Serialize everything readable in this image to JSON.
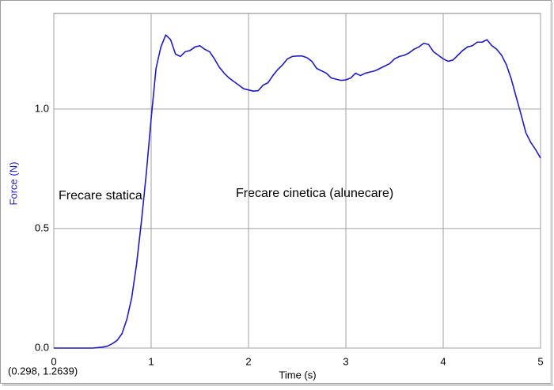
{
  "chart_data": {
    "type": "line",
    "x_label": "Time (s)",
    "y_label": "Force (N)",
    "annotations": [
      "Frecare statica",
      "Frecare cinetica (alunecare)"
    ],
    "cursor_readout": "(0.298, 1.2639)",
    "color": "#1c1cc4",
    "x": [
      0,
      0.1,
      0.2,
      0.3,
      0.4,
      0.45,
      0.5,
      0.55,
      0.6,
      0.65,
      0.7,
      0.75,
      0.8,
      0.85,
      0.9,
      0.95,
      1.0,
      1.05,
      1.1,
      1.15,
      1.2,
      1.25,
      1.3,
      1.35,
      1.4,
      1.45,
      1.5,
      1.55,
      1.6,
      1.65,
      1.7,
      1.75,
      1.8,
      1.85,
      1.9,
      1.95,
      2.0,
      2.05,
      2.1,
      2.15,
      2.2,
      2.25,
      2.3,
      2.35,
      2.4,
      2.45,
      2.5,
      2.55,
      2.6,
      2.65,
      2.7,
      2.75,
      2.8,
      2.85,
      2.9,
      2.95,
      3.0,
      3.05,
      3.1,
      3.15,
      3.2,
      3.25,
      3.3,
      3.35,
      3.4,
      3.45,
      3.5,
      3.55,
      3.6,
      3.65,
      3.7,
      3.75,
      3.8,
      3.85,
      3.9,
      3.95,
      4.0,
      4.05,
      4.1,
      4.15,
      4.2,
      4.25,
      4.3,
      4.35,
      4.4,
      4.45,
      4.5,
      4.55,
      4.6,
      4.65,
      4.7,
      4.75,
      4.8,
      4.85,
      4.9,
      4.95,
      5.0
    ],
    "values": [
      0,
      0,
      0,
      0,
      0,
      0.002,
      0.004,
      0.008,
      0.018,
      0.032,
      0.06,
      0.12,
      0.21,
      0.35,
      0.53,
      0.73,
      0.96,
      1.17,
      1.26,
      1.31,
      1.29,
      1.23,
      1.22,
      1.24,
      1.245,
      1.26,
      1.265,
      1.25,
      1.24,
      1.21,
      1.175,
      1.15,
      1.13,
      1.115,
      1.1,
      1.085,
      1.08,
      1.075,
      1.077,
      1.1,
      1.11,
      1.14,
      1.165,
      1.185,
      1.21,
      1.22,
      1.222,
      1.222,
      1.215,
      1.2,
      1.17,
      1.16,
      1.15,
      1.13,
      1.125,
      1.12,
      1.122,
      1.13,
      1.15,
      1.14,
      1.15,
      1.155,
      1.16,
      1.17,
      1.18,
      1.19,
      1.21,
      1.22,
      1.225,
      1.235,
      1.25,
      1.26,
      1.275,
      1.27,
      1.24,
      1.225,
      1.21,
      1.2,
      1.205,
      1.225,
      1.245,
      1.26,
      1.265,
      1.28,
      1.28,
      1.29,
      1.265,
      1.25,
      1.225,
      1.185,
      1.125,
      1.05,
      0.977,
      0.9,
      0.86,
      0.83,
      0.795
    ],
    "xlim": [
      0,
      5
    ],
    "xticks": [
      0,
      1,
      2,
      3,
      4,
      5
    ],
    "ylim": [
      0,
      1.4
    ],
    "yticks": [
      {
        "value": 0,
        "label": "0.0"
      },
      0.5,
      {
        "value": 1,
        "label": "1.0"
      }
    ],
    "grid": true
  }
}
